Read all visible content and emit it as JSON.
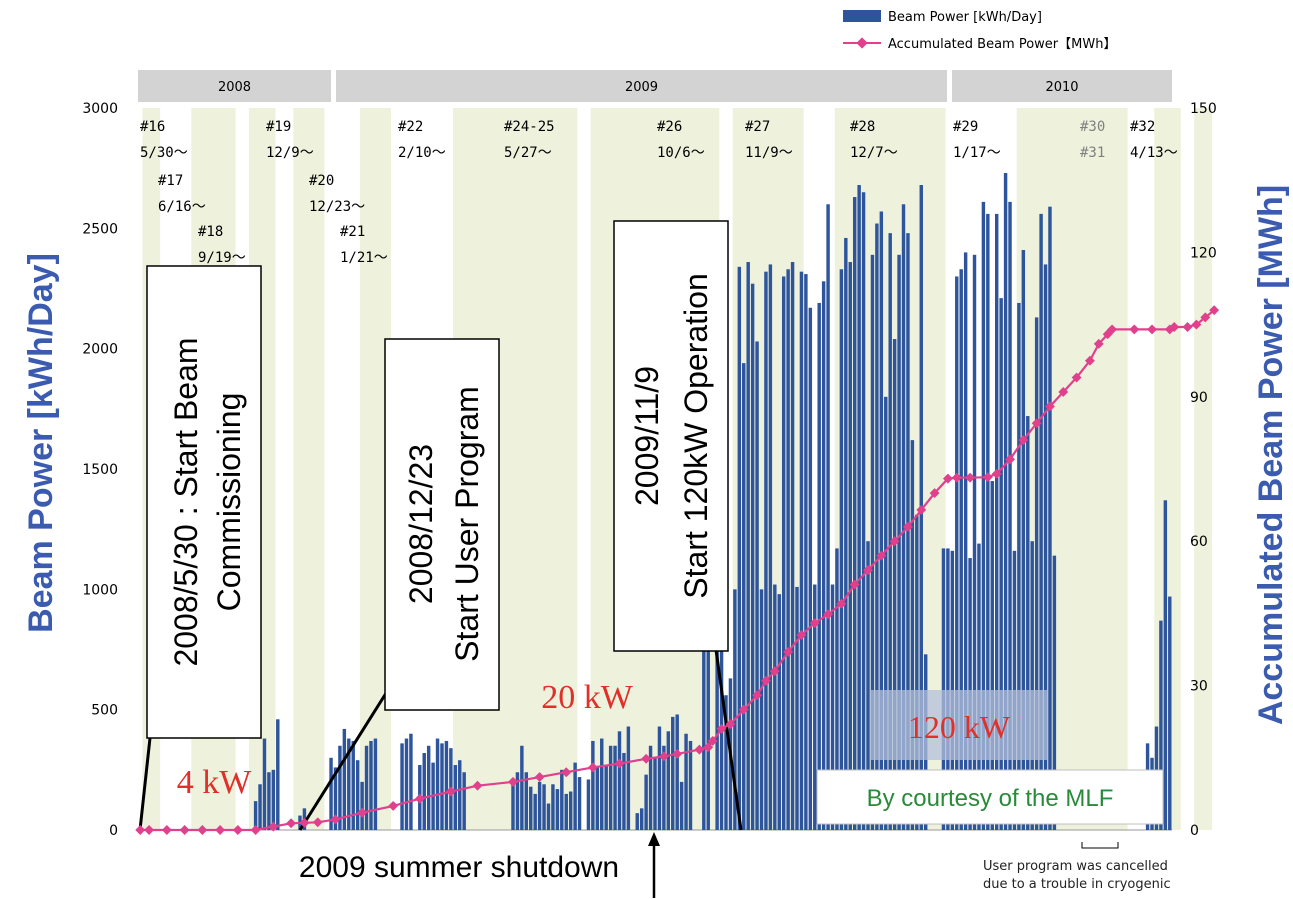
{
  "legend": {
    "bar_label": "Beam Power [kWh/Day]",
    "line_label": "Accumulated Beam Power【MWh】"
  },
  "years": [
    {
      "label": "2008"
    },
    {
      "label": "2009"
    },
    {
      "label": "2010"
    }
  ],
  "runs": [
    {
      "id": "#16",
      "date": "5/30〜"
    },
    {
      "id": "#17",
      "date": "6/16〜"
    },
    {
      "id": "#18",
      "date": "9/19〜"
    },
    {
      "id": "#19",
      "date": "12/9〜"
    },
    {
      "id": "#20",
      "date": "12/23〜"
    },
    {
      "id": "#21",
      "date": "1/21〜"
    },
    {
      "id": "#22",
      "date": "2/10〜"
    },
    {
      "id": "#24-25",
      "date": "5/27〜"
    },
    {
      "id": "#26",
      "date": "10/6〜"
    },
    {
      "id": "#27",
      "date": "11/9〜"
    },
    {
      "id": "#28",
      "date": "12/7〜"
    },
    {
      "id": "#29",
      "date": "1/17〜"
    },
    {
      "id": "#30",
      "date": "#31"
    },
    {
      "id": "#32",
      "date": "4/13〜"
    }
  ],
  "annotations": {
    "commissioning": [
      "2008/5/30 : Start Beam",
      "Commissioning"
    ],
    "user_program": [
      "2008/12/23",
      "Start User Program"
    ],
    "op120": [
      "2009/11/9",
      "Start 120kW Operation"
    ],
    "kw4": "4 kW",
    "kw20": "20 kW",
    "kw120": "120 kW",
    "courtesy": "By courtesy of the MLF",
    "shutdown": "2009 summer shutdown",
    "cancelled": [
      "User program was cancelled",
      "due to a trouble in cryogenic"
    ]
  },
  "chart_data": {
    "type": "bar",
    "xlabel": "",
    "ylabel": "Beam Power [kWh/Day]",
    "y2label": "Accumulated Beam Power [MWh]",
    "ylim": [
      0,
      3000
    ],
    "y2lim": [
      0,
      150
    ],
    "yticks": [
      "0",
      "500",
      "1000",
      "1500",
      "2000",
      "2500",
      "3000"
    ],
    "y2ticks": [
      "0",
      "30",
      "60",
      "90",
      "120",
      "150"
    ],
    "x_range": [
      "2008-05-30",
      "2010-05-01"
    ],
    "series": [
      {
        "name": "Beam Power [kWh/Day]",
        "type": "bar",
        "values": [
          0,
          0,
          0,
          0,
          0,
          0,
          0,
          0,
          0,
          0,
          0,
          0,
          0,
          0,
          0,
          0,
          0,
          0,
          0,
          0,
          0,
          0,
          0,
          0,
          0,
          0,
          120,
          190,
          380,
          240,
          250,
          460,
          0,
          0,
          0,
          0,
          60,
          90,
          0,
          0,
          0,
          0,
          0,
          300,
          260,
          350,
          420,
          380,
          370,
          290,
          200,
          350,
          370,
          380,
          0,
          0,
          0,
          0,
          0,
          360,
          380,
          400,
          0,
          270,
          320,
          350,
          280,
          380,
          360,
          370,
          340,
          270,
          290,
          240,
          0,
          0,
          0,
          0,
          0,
          0,
          0,
          0,
          0,
          0,
          210,
          240,
          350,
          240,
          180,
          150,
          200,
          190,
          110,
          190,
          170,
          250,
          150,
          160,
          280,
          220,
          0,
          210,
          370,
          260,
          380,
          270,
          350,
          350,
          410,
          320,
          430,
          0,
          70,
          90,
          230,
          350,
          300,
          430,
          350,
          410,
          470,
          480,
          200,
          400,
          370,
          0,
          0,
          1360,
          2500,
          0,
          1360,
          2500,
          560,
          630,
          1000,
          2340,
          1940,
          2360,
          2270,
          2030,
          1000,
          2320,
          2350,
          1020,
          980,
          2300,
          2330,
          2360,
          1010,
          2320,
          2310,
          2170,
          1020,
          2190,
          2280,
          2600,
          1020,
          1170,
          2330,
          2460,
          2360,
          2630,
          2680,
          2650,
          1200,
          2390,
          2520,
          2570,
          1800,
          2480,
          2040,
          2390,
          2600,
          2480,
          1620,
          1310,
          2680,
          730,
          0,
          0,
          0,
          1170,
          1170,
          1160,
          2300,
          2330,
          2400,
          1130,
          2390,
          1190,
          2610,
          2560,
          1450,
          2560,
          2210,
          2730,
          2610,
          1160,
          2190,
          2410,
          1720,
          1200,
          2130,
          2560,
          2350,
          2590,
          1140,
          0,
          0,
          0,
          0,
          0,
          0,
          0,
          0,
          0,
          0,
          0,
          0,
          0,
          0,
          0,
          0,
          0,
          0,
          0,
          0,
          360,
          300,
          430,
          870,
          1370,
          970
        ]
      },
      {
        "name": "Accumulated Beam Power [MWh]",
        "type": "line",
        "points": [
          [
            0,
            0
          ],
          [
            2,
            0
          ],
          [
            6,
            0
          ],
          [
            10,
            0
          ],
          [
            14,
            0
          ],
          [
            18,
            0
          ],
          [
            22,
            0
          ],
          [
            26,
            0
          ],
          [
            30,
            0.7
          ],
          [
            34,
            1.4
          ],
          [
            37,
            1.5
          ],
          [
            40,
            1.6
          ],
          [
            44,
            2.2
          ],
          [
            50,
            3.6
          ],
          [
            57,
            5
          ],
          [
            63,
            6.5
          ],
          [
            70,
            8
          ],
          [
            76,
            9.2
          ],
          [
            84,
            10
          ],
          [
            90,
            11
          ],
          [
            96,
            12
          ],
          [
            102,
            13
          ],
          [
            108,
            13.8
          ],
          [
            114,
            14.8
          ],
          [
            118,
            15.3
          ],
          [
            121,
            15.8
          ],
          [
            126,
            16.7
          ],
          [
            128,
            17.2
          ],
          [
            129,
            18.5
          ],
          [
            131,
            21
          ],
          [
            133,
            22
          ],
          [
            136,
            25
          ],
          [
            139,
            28
          ],
          [
            141,
            31
          ],
          [
            143,
            33
          ],
          [
            146,
            37
          ],
          [
            149,
            40.5
          ],
          [
            152,
            43
          ],
          [
            155,
            44.8
          ],
          [
            158,
            47
          ],
          [
            161,
            51
          ],
          [
            164,
            54
          ],
          [
            167,
            57
          ],
          [
            170,
            60
          ],
          [
            173,
            63
          ],
          [
            176,
            66.5
          ],
          [
            179,
            70
          ],
          [
            182,
            73
          ],
          [
            184,
            73.2
          ],
          [
            187,
            73.2
          ],
          [
            191,
            73.3
          ],
          [
            193,
            74
          ],
          [
            196,
            77
          ],
          [
            199,
            81
          ],
          [
            202,
            84.5
          ],
          [
            205,
            88
          ],
          [
            208,
            91
          ],
          [
            211,
            94
          ],
          [
            214,
            97.5
          ],
          [
            216,
            101
          ],
          [
            218,
            103
          ],
          [
            219,
            104
          ],
          [
            224,
            104
          ],
          [
            228,
            104
          ],
          [
            232,
            104
          ],
          [
            233,
            104.5
          ],
          [
            236,
            104.5
          ],
          [
            238,
            105
          ],
          [
            240,
            106.5
          ],
          [
            242,
            108
          ]
        ]
      }
    ]
  }
}
